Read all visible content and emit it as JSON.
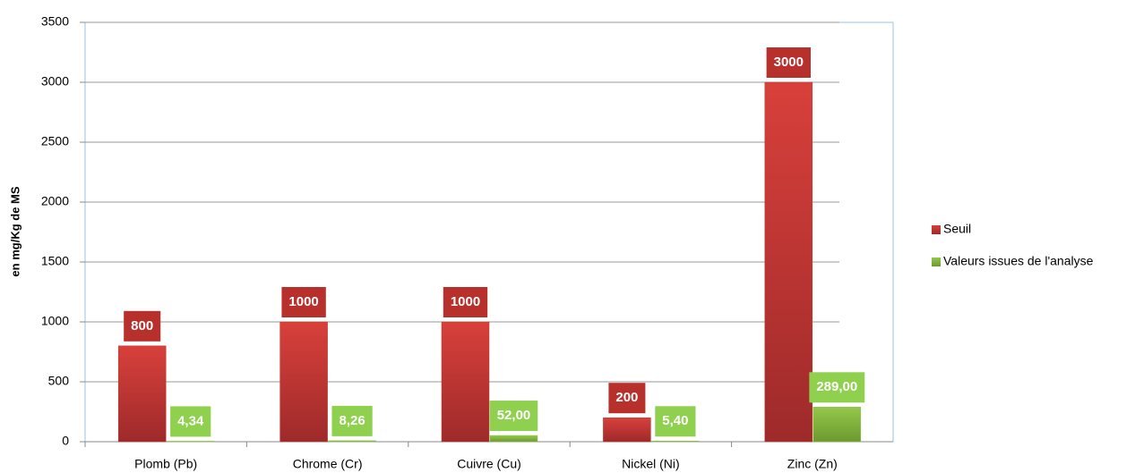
{
  "chart_data": {
    "type": "bar",
    "y_label": "en mg/Kg de MS",
    "categories": [
      "Plomb (Pb)",
      "Chrome (Cr)",
      "Cuivre (Cu)",
      "Nickel (Ni)",
      "Zinc (Zn)"
    ],
    "series": [
      {
        "name": "Seuil",
        "color": "#c0392f",
        "values": [
          800,
          1000,
          1000,
          200,
          3000
        ]
      },
      {
        "name": "Valeurs issues de l'analyse",
        "color": "#8cc63f",
        "values": [
          4.34,
          8.26,
          52,
          5.4,
          289
        ],
        "value_labels": [
          "4,34",
          "8,26",
          "52,00",
          "5,40",
          "289,00"
        ]
      }
    ],
    "ylim": [
      0,
      3500
    ],
    "yticks": [
      0,
      500,
      1000,
      1500,
      2000,
      2500,
      3000,
      3500
    ],
    "grid": true,
    "legend": "right"
  }
}
